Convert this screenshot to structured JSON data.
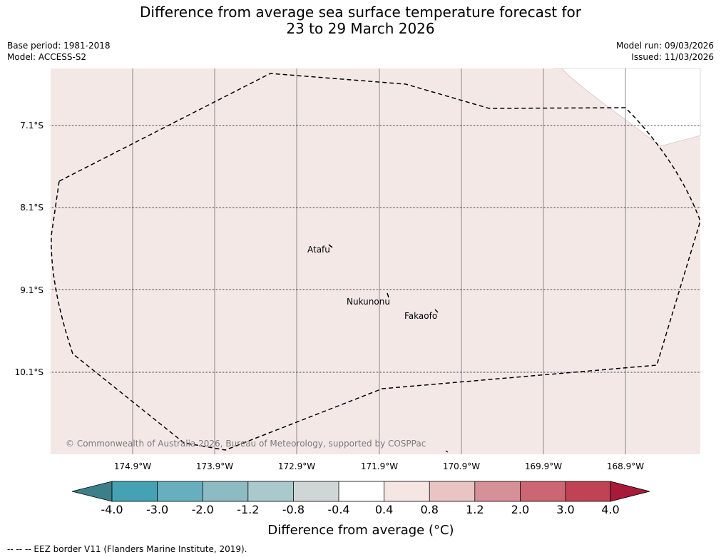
{
  "title": {
    "line1": "Difference from average sea surface temperature forecast for",
    "line2": "23 to 29 March 2026"
  },
  "meta": {
    "base_period": "Base period: 1981-2018",
    "model": "Model: ACCESS-S2",
    "model_run": "Model run: 09/03/2026",
    "issued": "Issued: 11/03/2026"
  },
  "map": {
    "ocean_color": "#f4e8e7",
    "lat_labels": [
      "7.1°S",
      "8.1°S",
      "9.1°S",
      "10.1°S"
    ],
    "lon_labels": [
      "174.9°W",
      "173.9°W",
      "172.9°W",
      "171.9°W",
      "170.9°W",
      "169.9°W",
      "168.9°W"
    ],
    "islands": [
      "Atafu",
      "Nukunonu",
      "Fakaofo"
    ],
    "copyright": "© Commonwealth of Australia 2026, Bureau of Meteorology, supported by COSPPac"
  },
  "colorbar": {
    "label": "Difference from average (°C)",
    "ticks": [
      "-4.0",
      "-3.0",
      "-2.0",
      "-1.2",
      "-0.8",
      "-0.4",
      "0.4",
      "0.8",
      "1.2",
      "2.0",
      "3.0",
      "4.0"
    ],
    "under_color": "#3d7f88",
    "over_color": "#a8193a",
    "colors": [
      "#45a2b4",
      "#67afbf",
      "#8cbbc4",
      "#aac9cc",
      "#d0d6d6",
      "#ffffff",
      "#f5e6e4",
      "#e8c5c2",
      "#d69097",
      "#cc6672",
      "#bf4354"
    ]
  },
  "footnote": "--  --  -- EEZ border V11 (Flanders Marine Institute, 2019)."
}
